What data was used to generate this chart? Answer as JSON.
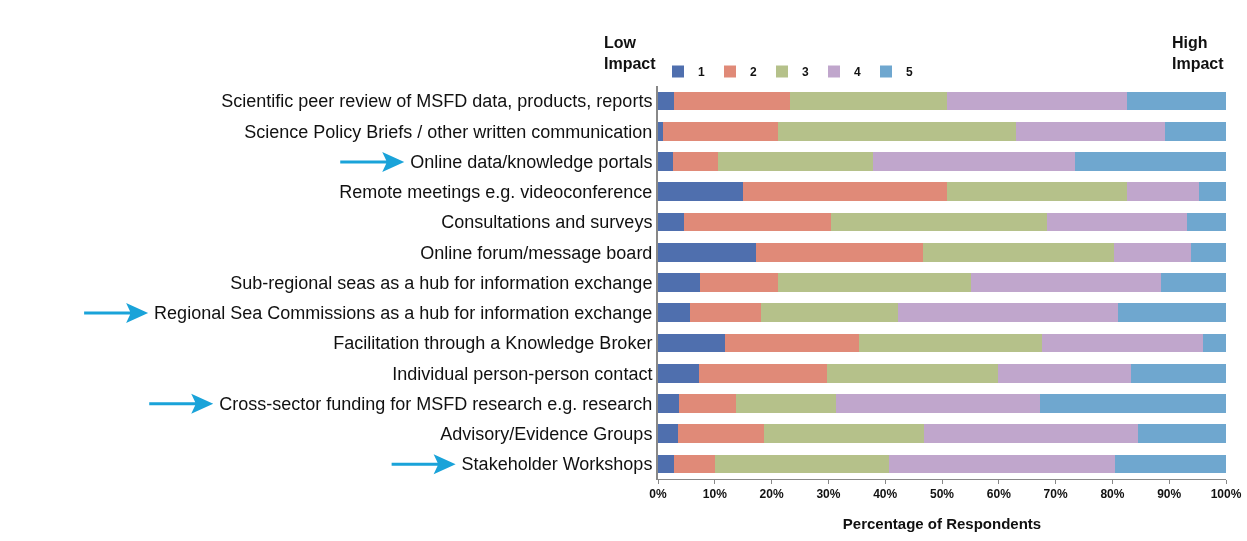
{
  "chart_data": {
    "type": "bar",
    "orientation": "horizontal",
    "stacked": true,
    "xlabel": "Percentage of Respondents",
    "categories": [
      "Scientific peer review of MSFD data, products, reports",
      "Science Policy Briefs / other written communication",
      "Online data/knowledge portals",
      "Remote meetings e.g. videoconference",
      "Consultations and surveys",
      "Online forum/message board",
      "Sub-regional seas as a hub for information exchange",
      "Regional Sea Commissions as a hub for information exchange",
      "Facilitation through a Knowledge Broker",
      "Individual person-person contact",
      "Cross-sector funding for MSFD research e.g. research",
      "Advisory/Evidence Groups",
      "Stakeholder Workshops"
    ],
    "series": [
      {
        "name": "1",
        "color": "#4f6fae",
        "values": [
          2.8,
          0.9,
          2.6,
          15.0,
          4.5,
          17.2,
          7.4,
          5.7,
          11.8,
          7.3,
          3.7,
          3.5,
          2.8
        ]
      },
      {
        "name": "2",
        "color": "#e08a78",
        "values": [
          20.5,
          20.3,
          8.0,
          35.8,
          25.9,
          29.4,
          13.8,
          12.5,
          23.6,
          22.5,
          10.1,
          15.2,
          7.3
        ]
      },
      {
        "name": "3",
        "color": "#b5c18a",
        "values": [
          27.5,
          41.8,
          27.2,
          31.8,
          38.1,
          33.7,
          33.9,
          24.1,
          32.2,
          30.0,
          17.6,
          28.2,
          30.5
        ]
      },
      {
        "name": "4",
        "color": "#c0a6cc",
        "values": [
          31.8,
          26.3,
          35.7,
          12.7,
          24.7,
          13.6,
          33.5,
          38.7,
          28.4,
          23.5,
          35.9,
          37.6,
          39.9
        ]
      },
      {
        "name": "5",
        "color": "#6fa7cf",
        "values": [
          17.4,
          10.7,
          26.5,
          4.7,
          6.8,
          6.1,
          11.4,
          19.0,
          4.0,
          16.7,
          32.7,
          15.5,
          19.5
        ]
      }
    ],
    "xlim": [
      0,
      100
    ],
    "xticks": [
      {
        "value": 0,
        "label": "0%"
      },
      {
        "value": 10,
        "label": "10%"
      },
      {
        "value": 20,
        "label": "20%"
      },
      {
        "value": 30,
        "label": "30%"
      },
      {
        "value": 40,
        "label": "40%"
      },
      {
        "value": 50,
        "label": "50%"
      },
      {
        "value": 60,
        "label": "60%"
      },
      {
        "value": 70,
        "label": "70%"
      },
      {
        "value": 80,
        "label": "80%"
      },
      {
        "value": 90,
        "label": "90%"
      },
      {
        "value": 100,
        "label": "100%"
      }
    ],
    "annotations": [
      "Low\nImpact",
      "High\nImpact"
    ],
    "legend": "top left",
    "grid": false
  }
}
